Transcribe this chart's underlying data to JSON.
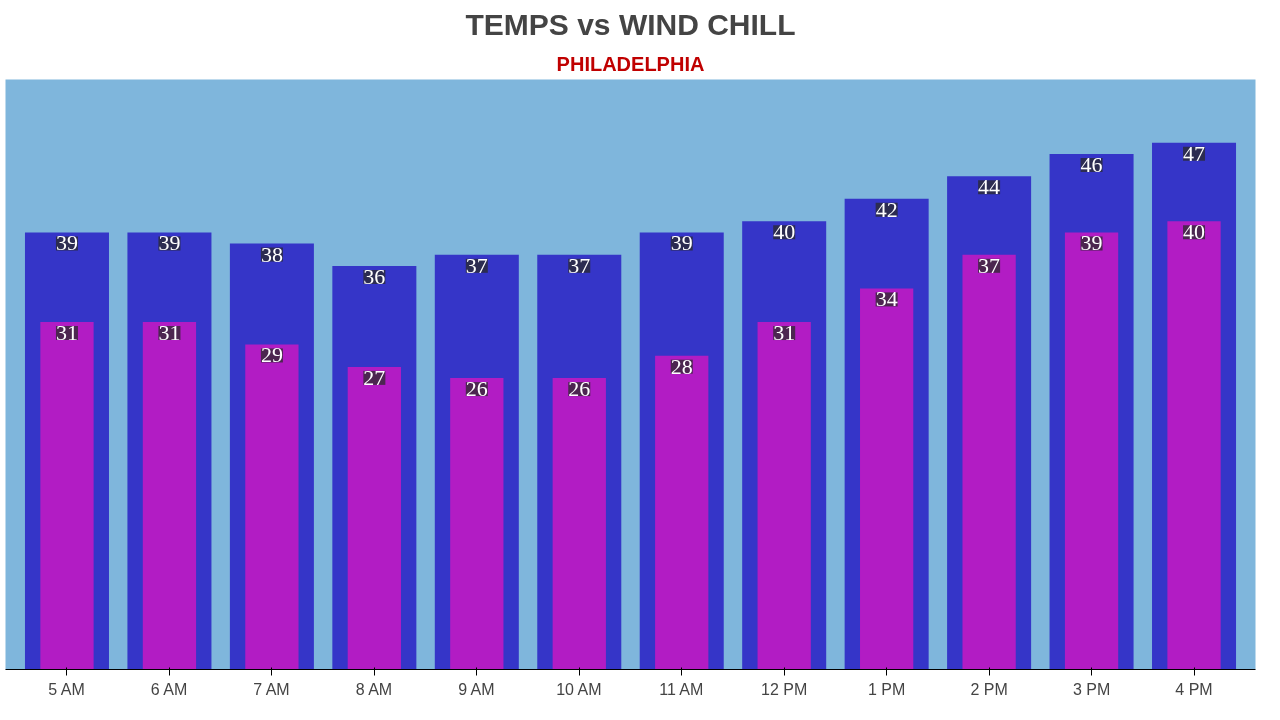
{
  "chart_data": {
    "type": "bar",
    "title": "TEMPS vs WIND CHILL",
    "subtitle": "PHILADELPHIA",
    "categories": [
      "5 AM",
      "6 AM",
      "7 AM",
      "8 AM",
      "9 AM",
      "10 AM",
      "11 AM",
      "12 PM",
      "1 PM",
      "2 PM",
      "3 PM",
      "4 PM"
    ],
    "series": [
      {
        "color": "#3535c8",
        "values": [
          39,
          39,
          38,
          36,
          37,
          37,
          39,
          40,
          42,
          44,
          46,
          47
        ]
      },
      {
        "color": "#b21cc4",
        "values": [
          31,
          31,
          29,
          27,
          26,
          26,
          28,
          31,
          34,
          37,
          39,
          40
        ]
      }
    ],
    "data_labels": true,
    "grid": false
  }
}
